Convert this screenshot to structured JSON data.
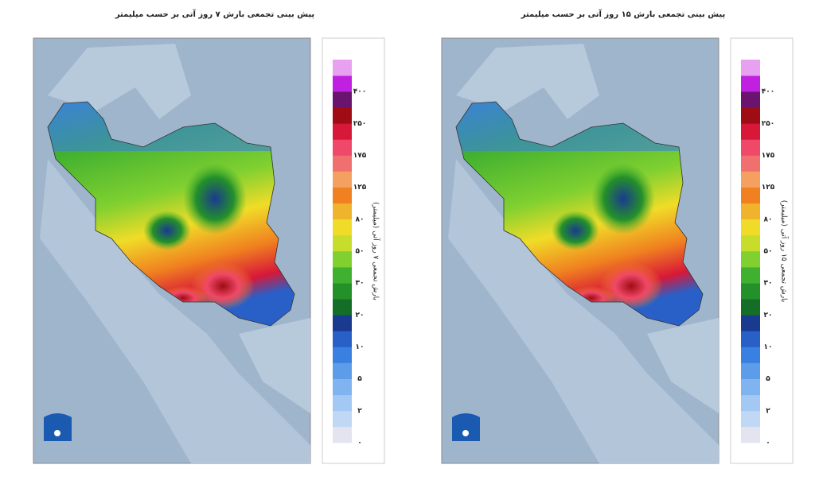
{
  "panels": [
    {
      "title": "پیش بینی تجمعی بارش ۷ روز آتی بر حسب میلیمتر",
      "colorbar_title": "بارش تجمعی ۷ روز آتی (میلیمتر)",
      "colorbar_labels": [
        "۰",
        "۲",
        "۵",
        "۱۰",
        "۲۰",
        "۳۰",
        "۵۰",
        "۸۰",
        "۱۲۵",
        "۱۷۵",
        "۲۵۰",
        "۴۰۰"
      ]
    },
    {
      "title": "پیش بینی تجمعی بارش ۱۵ روز آتی بر حسب میلیمتر",
      "colorbar_title": "بارش تجمعی ۱۵ روز آتی (میلیمتر)",
      "colorbar_labels": [
        "۰",
        "۲",
        "۵",
        "۱۰",
        "۲۰",
        "۳۰",
        "۵۰",
        "۸۰",
        "۱۲۵",
        "۱۷۵",
        "۲۵۰",
        "۴۰۰"
      ]
    }
  ],
  "colorbar_colors": [
    "#e4e4f0",
    "#c0d8f4",
    "#a4c8f4",
    "#80b4f0",
    "#5c9ce8",
    "#3a80e0",
    "#2860c8",
    "#1a3a90",
    "#146e28",
    "#24902a",
    "#40b030",
    "#80d030",
    "#c8dc2c",
    "#f0dc28",
    "#f0b42c",
    "#f08020",
    "#f4a060",
    "#f07070",
    "#f04868",
    "#d81838",
    "#a00c14",
    "#6a1470",
    "#c020e0",
    "#e8a0f0"
  ]
}
